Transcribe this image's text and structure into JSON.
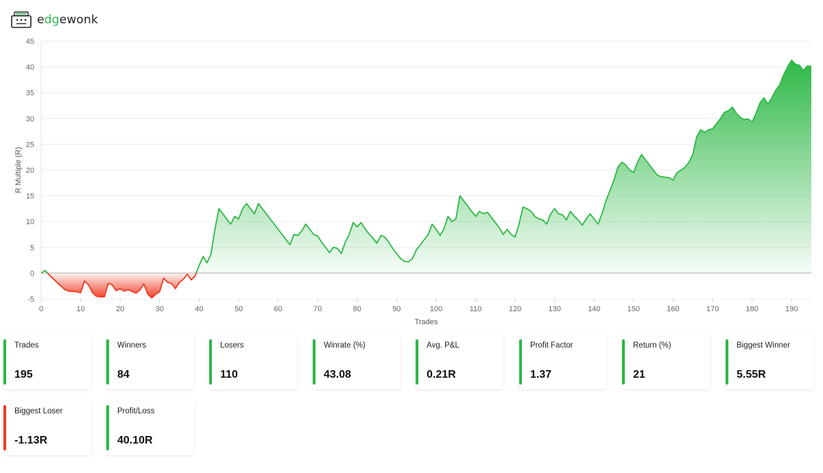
{
  "brand": {
    "name_pre": "e",
    "name_accent": "dg",
    "name_post": "ewonk",
    "icon": "cash-register-icon",
    "accent_color": "#2fb84a"
  },
  "colors": {
    "positive": "#2cb845",
    "negative": "#ef3a21"
  },
  "chart_data": {
    "type": "area",
    "title": "",
    "xlabel": "Trades",
    "ylabel": "R Multiple (R)",
    "xlim": [
      0,
      195
    ],
    "ylim": [
      -5,
      45
    ],
    "xticks": [
      0,
      10,
      20,
      30,
      40,
      50,
      60,
      70,
      80,
      90,
      100,
      110,
      120,
      130,
      140,
      150,
      160,
      170,
      180,
      190
    ],
    "yticks": [
      -5,
      0,
      5,
      10,
      15,
      20,
      25,
      30,
      35,
      40,
      45
    ],
    "grid": "horizontal",
    "legend": "none",
    "series": [
      {
        "points": [
          [
            0,
            0
          ],
          [
            1,
            0.5
          ],
          [
            2,
            -0.3
          ],
          [
            4,
            -1.8
          ],
          [
            6,
            -3.2
          ],
          [
            7,
            -3.5
          ],
          [
            9,
            -3.6
          ],
          [
            10,
            -3.8
          ],
          [
            11,
            -1.5
          ],
          [
            12,
            -2.3
          ],
          [
            13,
            -3.8
          ],
          [
            14,
            -4.5
          ],
          [
            15,
            -4.6
          ],
          [
            16,
            -4.6
          ],
          [
            17,
            -2
          ],
          [
            18,
            -2.3
          ],
          [
            19,
            -3.4
          ],
          [
            20,
            -3.0
          ],
          [
            21,
            -3.5
          ],
          [
            22,
            -3.2
          ],
          [
            24,
            -3.9
          ],
          [
            25,
            -3.3
          ],
          [
            26,
            -2.1
          ],
          [
            27,
            -4.1
          ],
          [
            28,
            -4.8
          ],
          [
            29,
            -4.1
          ],
          [
            30,
            -3.6
          ],
          [
            31,
            -1.0
          ],
          [
            32,
            -1.8
          ],
          [
            33,
            -2.0
          ],
          [
            34,
            -3.0
          ],
          [
            35,
            -1.8
          ],
          [
            36,
            -1.2
          ],
          [
            37,
            -0.2
          ],
          [
            38,
            -1.3
          ],
          [
            39,
            -0.5
          ],
          [
            40,
            1.5
          ],
          [
            41,
            3.2
          ],
          [
            42,
            2.0
          ],
          [
            43,
            3.7
          ],
          [
            44,
            8.5
          ],
          [
            45,
            12.5
          ],
          [
            46,
            11.5
          ],
          [
            47,
            10.5
          ],
          [
            48,
            9.5
          ],
          [
            49,
            11.0
          ],
          [
            50,
            10.5
          ],
          [
            51,
            12.5
          ],
          [
            52,
            13.5
          ],
          [
            53,
            12.5
          ],
          [
            54,
            11.5
          ],
          [
            55,
            13.5
          ],
          [
            57,
            11.5
          ],
          [
            59,
            9.5
          ],
          [
            61,
            7.5
          ],
          [
            63,
            5.5
          ],
          [
            64,
            7.5
          ],
          [
            65,
            7.3
          ],
          [
            66,
            8.2
          ],
          [
            67,
            9.5
          ],
          [
            68,
            8.5
          ],
          [
            69,
            7.5
          ],
          [
            70,
            7.2
          ],
          [
            71,
            6.0
          ],
          [
            72,
            5.0
          ],
          [
            73,
            4.0
          ],
          [
            74,
            5.0
          ],
          [
            75,
            4.8
          ],
          [
            76,
            3.8
          ],
          [
            77,
            6.0
          ],
          [
            78,
            7.5
          ],
          [
            79,
            9.8
          ],
          [
            80,
            9.0
          ],
          [
            81,
            9.8
          ],
          [
            82,
            8.6
          ],
          [
            83,
            7.6
          ],
          [
            84,
            6.8
          ],
          [
            85,
            5.8
          ],
          [
            86,
            7.3
          ],
          [
            87,
            7.0
          ],
          [
            88,
            6.0
          ],
          [
            89,
            4.8
          ],
          [
            90,
            3.8
          ],
          [
            91,
            2.8
          ],
          [
            92,
            2.3
          ],
          [
            93,
            2.2
          ],
          [
            94,
            2.8
          ],
          [
            95,
            4.5
          ],
          [
            96,
            5.5
          ],
          [
            97,
            6.5
          ],
          [
            98,
            7.5
          ],
          [
            99,
            9.5
          ],
          [
            100,
            8.5
          ],
          [
            101,
            7.3
          ],
          [
            102,
            8.6
          ],
          [
            103,
            11.0
          ],
          [
            104,
            10.0
          ],
          [
            105,
            10.5
          ],
          [
            106,
            15.0
          ],
          [
            107,
            14.0
          ],
          [
            108,
            13.0
          ],
          [
            109,
            12.0
          ],
          [
            110,
            11.0
          ],
          [
            111,
            12.0
          ],
          [
            112,
            11.5
          ],
          [
            113,
            11.8
          ],
          [
            114,
            10.8
          ],
          [
            115,
            9.8
          ],
          [
            116,
            8.8
          ],
          [
            117,
            7.5
          ],
          [
            118,
            8.5
          ],
          [
            119,
            7.5
          ],
          [
            120,
            7.0
          ],
          [
            121,
            9.5
          ],
          [
            122,
            12.8
          ],
          [
            123,
            12.5
          ],
          [
            124,
            12.0
          ],
          [
            125,
            11.0
          ],
          [
            126,
            10.5
          ],
          [
            127,
            10.3
          ],
          [
            128,
            9.5
          ],
          [
            129,
            11.5
          ],
          [
            130,
            12.5
          ],
          [
            131,
            11.5
          ],
          [
            132,
            11.3
          ],
          [
            133,
            10.3
          ],
          [
            134,
            12.0
          ],
          [
            135,
            11.0
          ],
          [
            136,
            10.3
          ],
          [
            137,
            9.3
          ],
          [
            138,
            10.5
          ],
          [
            139,
            11.5
          ],
          [
            140,
            10.5
          ],
          [
            141,
            9.5
          ],
          [
            142,
            11.5
          ],
          [
            143,
            14.0
          ],
          [
            144,
            16.0
          ],
          [
            145,
            18.0
          ],
          [
            146,
            20.5
          ],
          [
            147,
            21.5
          ],
          [
            148,
            21.0
          ],
          [
            149,
            20.0
          ],
          [
            150,
            19.5
          ],
          [
            151,
            21.5
          ],
          [
            152,
            23.0
          ],
          [
            153,
            22.0
          ],
          [
            154,
            21.0
          ],
          [
            155,
            20.0
          ],
          [
            156,
            19.0
          ],
          [
            157,
            18.7
          ],
          [
            158,
            18.6
          ],
          [
            159,
            18.5
          ],
          [
            160,
            18.0
          ],
          [
            161,
            19.5
          ],
          [
            162,
            20.0
          ],
          [
            163,
            20.5
          ],
          [
            164,
            21.5
          ],
          [
            165,
            23.0
          ],
          [
            166,
            26.5
          ],
          [
            167,
            27.8
          ],
          [
            168,
            27.3
          ],
          [
            169,
            27.8
          ],
          [
            170,
            28.0
          ],
          [
            171,
            29.0
          ],
          [
            172,
            30.0
          ],
          [
            173,
            31.2
          ],
          [
            174,
            31.5
          ],
          [
            175,
            32.2
          ],
          [
            176,
            31.0
          ],
          [
            177,
            30.2
          ],
          [
            178,
            29.8
          ],
          [
            179,
            29.9
          ],
          [
            180,
            29.3
          ],
          [
            181,
            31.0
          ],
          [
            182,
            33.0
          ],
          [
            183,
            34.0
          ],
          [
            184,
            32.8
          ],
          [
            185,
            34.0
          ],
          [
            186,
            35.5
          ],
          [
            187,
            36.5
          ],
          [
            188,
            38.5
          ],
          [
            189,
            40.0
          ],
          [
            190,
            41.3
          ],
          [
            191,
            40.5
          ],
          [
            192,
            40.3
          ],
          [
            193,
            39.3
          ],
          [
            194,
            40.2
          ],
          [
            195,
            40.1
          ]
        ]
      }
    ]
  },
  "stats": [
    {
      "label": "Trades",
      "value": "195",
      "color": "#2cb845"
    },
    {
      "label": "Winners",
      "value": "84",
      "color": "#2cb845"
    },
    {
      "label": "Losers",
      "value": "110",
      "color": "#2cb845"
    },
    {
      "label": "Winrate (%)",
      "value": "43.08",
      "color": "#2cb845"
    },
    {
      "label": "Avg. P&L",
      "value": "0.21R",
      "color": "#2cb845"
    },
    {
      "label": "Profit Factor",
      "value": "1.37",
      "color": "#2cb845"
    },
    {
      "label": "Return (%)",
      "value": "21",
      "color": "#2cb845"
    },
    {
      "label": "Biggest Winner",
      "value": "5.55R",
      "color": "#2cb845"
    },
    {
      "label": "Biggest Loser",
      "value": "-1.13R",
      "color": "#ef3a21"
    },
    {
      "label": "Profit/Loss",
      "value": "40.10R",
      "color": "#2cb845"
    }
  ]
}
